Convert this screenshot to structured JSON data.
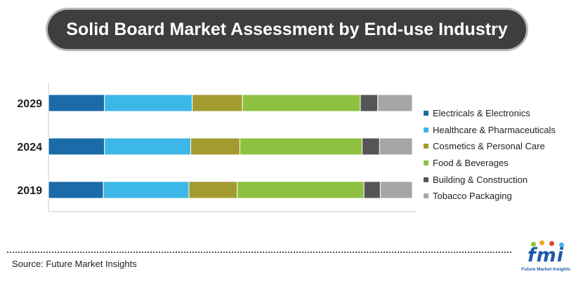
{
  "title": "Solid Board Market Assessment by End-use Industry",
  "source": "Source: Future Market Insights",
  "logo": {
    "text": "fmi",
    "subtext": "Future Market Insights"
  },
  "colors": {
    "title_bg": "#3e3e3e",
    "axis": "#c8c8c8"
  },
  "chart_data": {
    "type": "bar",
    "orientation": "horizontal",
    "stacked": true,
    "normalized": true,
    "categories": [
      "2029",
      "2024",
      "2019"
    ],
    "series": [
      {
        "name": "Electricals & Electronics",
        "color": "#1a6ba8",
        "values": [
          15.4,
          15.4,
          15.1
        ]
      },
      {
        "name": "Healthcare & Pharmaceuticals",
        "color": "#3db7e6",
        "values": [
          24.1,
          23.7,
          23.5
        ]
      },
      {
        "name": "Cosmetics & Personal Care",
        "color": "#a39b2f",
        "values": [
          13.8,
          13.5,
          13.3
        ]
      },
      {
        "name": "Food & Beverages",
        "color": "#8dc13f",
        "values": [
          32.4,
          33.6,
          34.8
        ]
      },
      {
        "name": "Building & Construction",
        "color": "#555555",
        "values": [
          4.8,
          4.8,
          4.5
        ]
      },
      {
        "name": "Tobacco Packaging",
        "color": "#a6a6a6",
        "values": [
          9.5,
          9.0,
          8.8
        ]
      }
    ],
    "xlabel": "",
    "ylabel": "",
    "xlim": [
      0,
      100
    ],
    "grid": false,
    "legend_position": "right"
  }
}
